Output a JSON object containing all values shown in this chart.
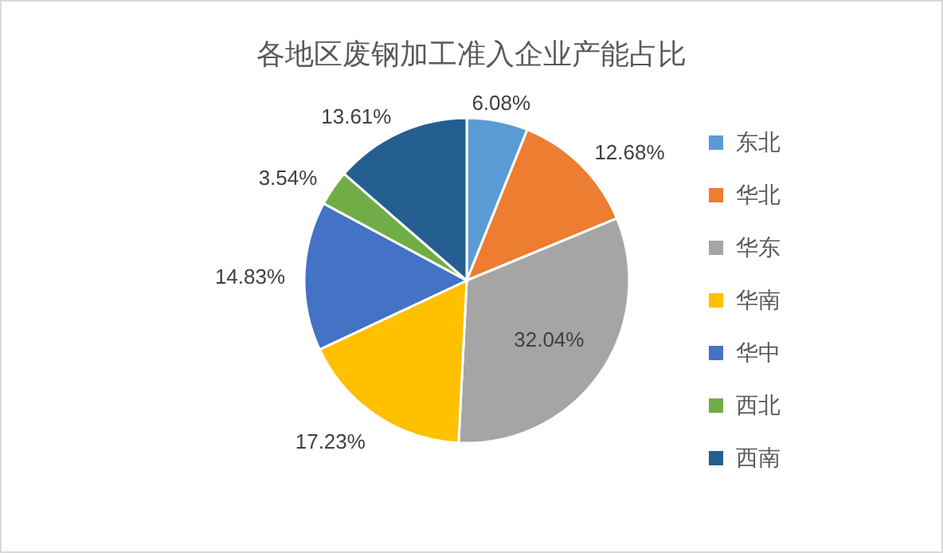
{
  "chart_data": {
    "type": "pie",
    "title": "各地区废钢加工准入企业产能占比",
    "categories": [
      "东北",
      "华北",
      "华东",
      "华南",
      "华中",
      "西北",
      "西南"
    ],
    "values": [
      6.08,
      12.68,
      32.04,
      17.23,
      14.83,
      3.54,
      13.61
    ],
    "colors": [
      "#5b9bd5",
      "#ed7d31",
      "#a5a5a5",
      "#ffc000",
      "#4472c4",
      "#70ad47",
      "#255e91"
    ],
    "value_labels": [
      "6.08%",
      "12.68%",
      "32.04%",
      "17.23%",
      "14.83%",
      "3.54%",
      "13.61%"
    ],
    "legend": "right"
  }
}
